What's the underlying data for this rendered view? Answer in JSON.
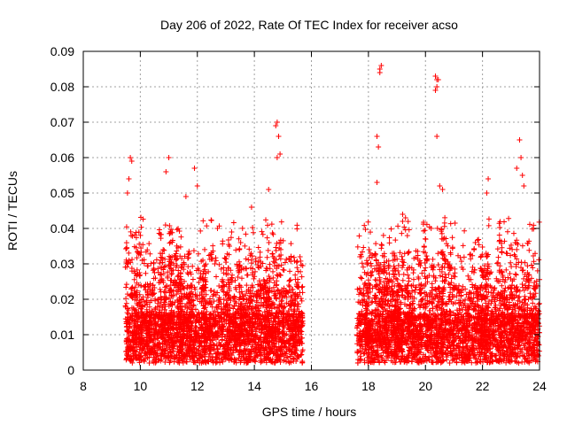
{
  "chart_data": {
    "type": "scatter",
    "title": "Day 206 of 2022, Rate Of TEC Index for receiver acso",
    "xlabel": "GPS time / hours",
    "ylabel": "ROTI / TECUs",
    "xlim": [
      8,
      24
    ],
    "ylim": [
      0,
      0.09
    ],
    "xticks": [
      8,
      10,
      12,
      14,
      16,
      18,
      20,
      22,
      24
    ],
    "yticks": [
      0,
      0.01,
      0.02,
      0.03,
      0.04,
      0.05,
      0.06,
      0.07,
      0.08,
      0.09
    ],
    "xtick_labels": [
      "8",
      "10",
      "12",
      "14",
      "16",
      "18",
      "20",
      "22",
      "24"
    ],
    "ytick_labels": [
      "0",
      "0.01",
      "0.02",
      "0.03",
      "0.04",
      "0.05",
      "0.06",
      "0.07",
      "0.08",
      "0.09"
    ],
    "grid": true,
    "marker": "+",
    "color": "#ff0000",
    "data_segments": [
      {
        "x_start": 9.5,
        "x_end": 15.7
      },
      {
        "x_start": 17.6,
        "x_end": 24.0
      }
    ],
    "notable_points": [
      {
        "x": 9.65,
        "y": 0.06
      },
      {
        "x": 9.7,
        "y": 0.059
      },
      {
        "x": 9.6,
        "y": 0.054
      },
      {
        "x": 9.55,
        "y": 0.05
      },
      {
        "x": 10.9,
        "y": 0.056
      },
      {
        "x": 11.0,
        "y": 0.06
      },
      {
        "x": 11.9,
        "y": 0.057
      },
      {
        "x": 12.0,
        "y": 0.052
      },
      {
        "x": 11.6,
        "y": 0.049
      },
      {
        "x": 14.8,
        "y": 0.07
      },
      {
        "x": 14.75,
        "y": 0.069
      },
      {
        "x": 14.85,
        "y": 0.066
      },
      {
        "x": 14.9,
        "y": 0.061
      },
      {
        "x": 14.8,
        "y": 0.06
      },
      {
        "x": 14.5,
        "y": 0.051
      },
      {
        "x": 18.3,
        "y": 0.066
      },
      {
        "x": 18.35,
        "y": 0.063
      },
      {
        "x": 18.4,
        "y": 0.085
      },
      {
        "x": 18.45,
        "y": 0.086
      },
      {
        "x": 18.4,
        "y": 0.084
      },
      {
        "x": 18.3,
        "y": 0.053
      },
      {
        "x": 20.35,
        "y": 0.083
      },
      {
        "x": 20.4,
        "y": 0.082
      },
      {
        "x": 20.45,
        "y": 0.082
      },
      {
        "x": 20.35,
        "y": 0.079
      },
      {
        "x": 20.4,
        "y": 0.08
      },
      {
        "x": 20.4,
        "y": 0.066
      },
      {
        "x": 20.5,
        "y": 0.052
      },
      {
        "x": 20.6,
        "y": 0.051
      },
      {
        "x": 22.2,
        "y": 0.054
      },
      {
        "x": 22.15,
        "y": 0.05
      },
      {
        "x": 23.3,
        "y": 0.065
      },
      {
        "x": 23.35,
        "y": 0.06
      },
      {
        "x": 23.4,
        "y": 0.055
      },
      {
        "x": 23.45,
        "y": 0.052
      },
      {
        "x": 23.2,
        "y": 0.057
      },
      {
        "x": 19.2,
        "y": 0.044
      },
      {
        "x": 19.3,
        "y": 0.043
      },
      {
        "x": 20.2,
        "y": 0.04
      },
      {
        "x": 13.9,
        "y": 0.046
      },
      {
        "x": 15.6,
        "y": 0.032
      },
      {
        "x": 17.7,
        "y": 0.032
      }
    ]
  }
}
